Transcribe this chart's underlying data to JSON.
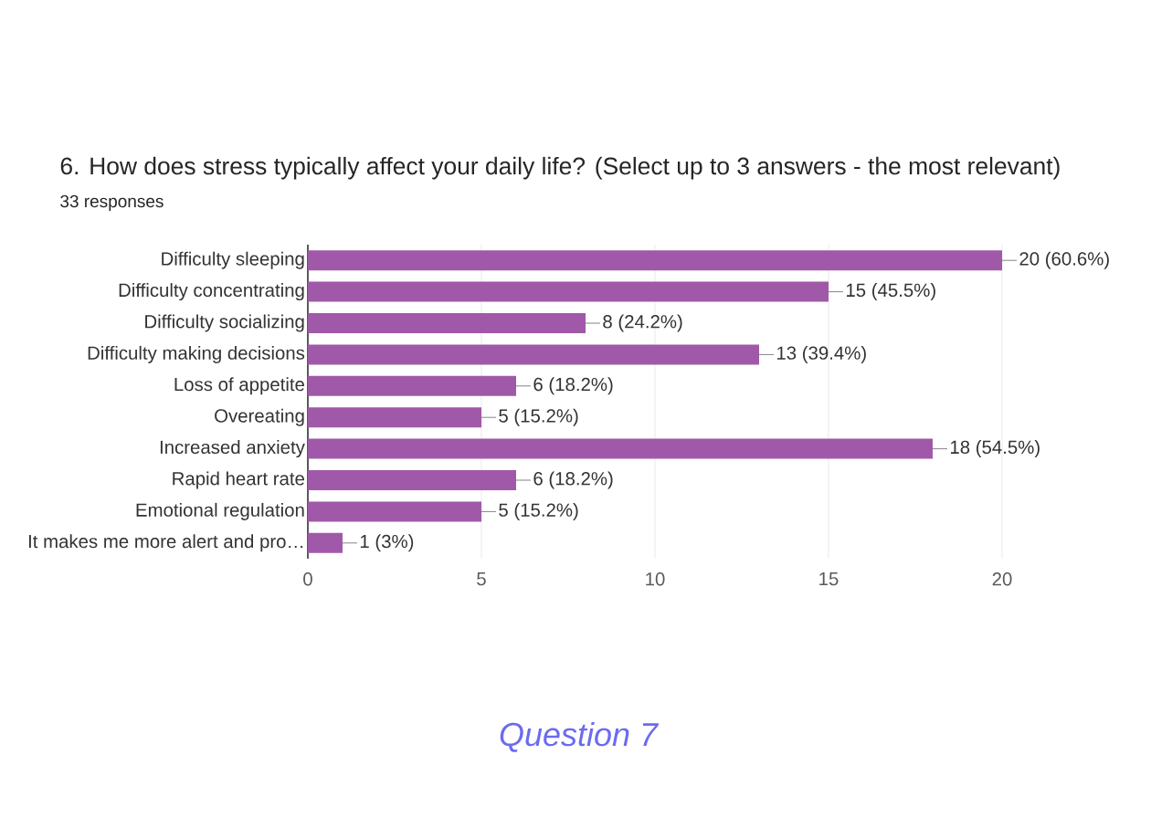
{
  "chart_data": {
    "type": "bar",
    "orientation": "horizontal",
    "title": "6. How does stress typically affect your daily life? (Select up to 3 answers - the most relevant)",
    "subtitle": "33 responses",
    "categories": [
      "Difficulty sleeping",
      "Difficulty concentrating",
      "Difficulty socializing",
      "Difficulty making decisions",
      "Loss of appetite",
      "Overeating",
      "Increased anxiety",
      "Rapid heart rate",
      "Emotional regulation",
      "It makes me more alert and pro…"
    ],
    "values": [
      20,
      15,
      8,
      13,
      6,
      5,
      18,
      6,
      5,
      1
    ],
    "value_labels": [
      "20 (60.6%)",
      "15 (45.5%)",
      "8 (24.2%)",
      "13 (39.4%)",
      "6 (18.2%)",
      "5 (15.2%)",
      "18 (54.5%)",
      "6 (18.2%)",
      "5 (15.2%)",
      "1 (3%)"
    ],
    "color": "#a059a8",
    "xlim": [
      0,
      20
    ],
    "xticks": [
      0,
      5,
      10,
      15,
      20
    ],
    "grid": "x",
    "annotations": [
      "Question 7"
    ]
  }
}
